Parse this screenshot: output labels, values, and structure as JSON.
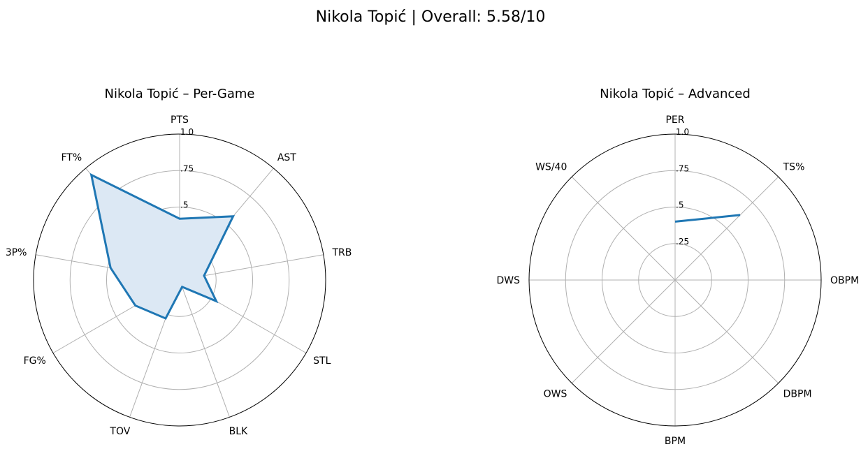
{
  "suptitle": "Nikola Topić | Overall: 5.58/10",
  "chart_data": [
    {
      "type": "radar",
      "title": "Nikola Topić – Per-Game",
      "categories": [
        "PTS",
        "AST",
        "TRB",
        "STL",
        "BLK",
        "TOV",
        "FG%",
        "3P%",
        "FT%"
      ],
      "values": [
        0.42,
        0.57,
        0.17,
        0.29,
        0.05,
        0.28,
        0.35,
        0.48,
        0.94
      ],
      "rlim": [
        0,
        1.0
      ],
      "rticks": [
        0.25,
        0.5,
        0.75,
        1.0
      ],
      "rtick_labels": [
        ".25",
        ".5",
        ".75",
        "1.0"
      ],
      "filled": true,
      "closed": true,
      "line_color": "#1f77b4",
      "fill_color": "#dce8f4",
      "grid": true
    },
    {
      "type": "radar",
      "title": "Nikola Topić – Advanced",
      "categories": [
        "PER",
        "TS%",
        "OBPM",
        "DBPM",
        "BPM",
        "OWS",
        "DWS",
        "WS/40"
      ],
      "values": [
        0.4,
        0.63,
        null,
        null,
        null,
        null,
        null,
        null
      ],
      "rlim": [
        0,
        1.0
      ],
      "rticks": [
        0.25,
        0.5,
        0.75,
        1.0
      ],
      "rtick_labels": [
        ".25",
        ".5",
        ".75",
        "1.0"
      ],
      "filled": false,
      "closed": false,
      "line_color": "#1f77b4",
      "grid": true
    }
  ]
}
